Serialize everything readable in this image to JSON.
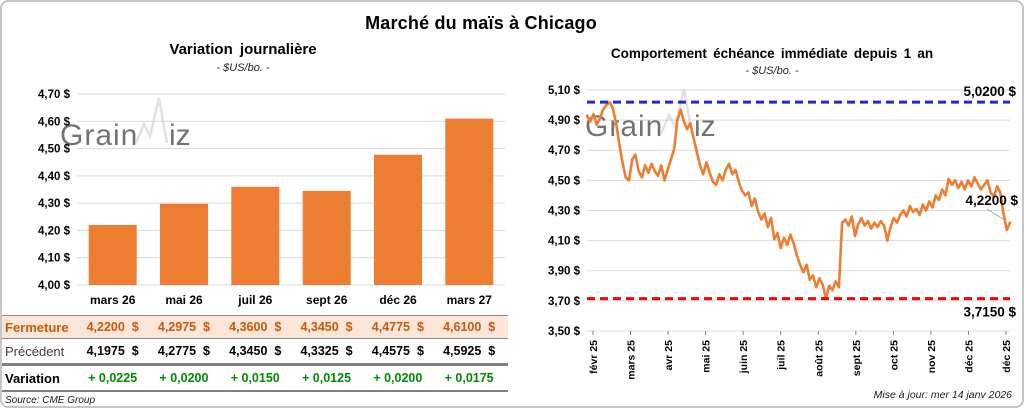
{
  "header": {
    "title": "Marché du maïs à Chicago"
  },
  "watermark": {
    "text": "GrainWiz",
    "prefix": "Grain",
    "suffix": "iz"
  },
  "colors": {
    "accent_orange": "#ED7D31",
    "fermeture_bg": "#FBE5D6",
    "fermeture_text": "#C55A11",
    "variation_green": "#008C00",
    "ref_high_blue": "#2626CC",
    "ref_low_red": "#FF0000",
    "gridline_gray": "#D9D9D9"
  },
  "chart_data": [
    {
      "type": "bar",
      "title": "Variation journalière",
      "subtitle": "- $US/bo. -",
      "categories": [
        "mars 26",
        "mai 26",
        "juil 26",
        "sept 26",
        "déc 26",
        "mars 27"
      ],
      "values": [
        4.22,
        4.2975,
        4.36,
        4.345,
        4.4775,
        4.61
      ],
      "ylim": [
        4.0,
        4.7
      ],
      "ytick_step": 0.1,
      "ytick_format": "0,00 $",
      "bar_color": "#ED7D31",
      "grid": "horizontal",
      "legend": "none"
    },
    {
      "type": "line",
      "title": "Comportement échéance immédiate depuis 1 an",
      "subtitle": "- $US/bo. -",
      "x_labels": [
        "févr 25",
        "mars 25",
        "avr 25",
        "mai 25",
        "juin 25",
        "juil 25",
        "août 25",
        "sept 25",
        "oct 25",
        "nov 25",
        "déc 25",
        "déc 25"
      ],
      "values": [
        4.93,
        4.89,
        4.94,
        4.87,
        4.91,
        4.97,
        5.0,
        5.02,
        4.98,
        4.88,
        4.74,
        4.62,
        4.52,
        4.5,
        4.64,
        4.67,
        4.56,
        4.52,
        4.6,
        4.55,
        4.61,
        4.56,
        4.53,
        4.6,
        4.5,
        4.57,
        4.64,
        4.71,
        4.9,
        4.97,
        4.89,
        4.84,
        4.88,
        4.78,
        4.69,
        4.6,
        4.54,
        4.62,
        4.55,
        4.49,
        4.47,
        4.54,
        4.5,
        4.57,
        4.61,
        4.54,
        4.57,
        4.49,
        4.43,
        4.4,
        4.42,
        4.33,
        4.38,
        4.29,
        4.24,
        4.28,
        4.19,
        4.25,
        4.11,
        4.15,
        4.05,
        4.12,
        4.07,
        4.14,
        4.08,
        4.0,
        3.94,
        3.89,
        3.94,
        3.84,
        3.87,
        3.79,
        3.85,
        3.81,
        3.715,
        3.8,
        3.77,
        3.83,
        3.79,
        4.22,
        4.24,
        4.2,
        4.26,
        4.13,
        4.21,
        4.25,
        4.2,
        4.23,
        4.18,
        4.22,
        4.19,
        4.23,
        4.2,
        4.1,
        4.19,
        4.25,
        4.22,
        4.27,
        4.3,
        4.26,
        4.33,
        4.29,
        4.31,
        4.27,
        4.34,
        4.3,
        4.36,
        4.32,
        4.4,
        4.37,
        4.44,
        4.4,
        4.51,
        4.47,
        4.5,
        4.45,
        4.49,
        4.44,
        4.5,
        4.46,
        4.52,
        4.48,
        4.44,
        4.47,
        4.5,
        4.42,
        4.39,
        4.46,
        4.42,
        4.28,
        4.17,
        4.22
      ],
      "ylim": [
        3.5,
        5.1
      ],
      "ytick_step": 0.2,
      "ytick_format": "0,00 $",
      "line_color": "#ED7D31",
      "ref_lines": [
        {
          "value": 5.02,
          "label": "5,0200 $",
          "color": "#2626CC",
          "position": "above"
        },
        {
          "value": 3.715,
          "label": "3,7150 $",
          "color": "#FF0000",
          "position": "below"
        }
      ],
      "last_value_label": "4,2200 $",
      "grid": "horizontal",
      "legend": "none"
    }
  ],
  "table": {
    "rows": [
      {
        "label": "Fermeture",
        "values": [
          "4,2200  $",
          "4,2975  $",
          "4,3600  $",
          "4,3450  $",
          "4,4775  $",
          "4,6100  $"
        ]
      },
      {
        "label": "Précédent",
        "values": [
          "4,1975  $",
          "4,2775  $",
          "4,3450  $",
          "4,3325  $",
          "4,4575  $",
          "4,5925  $"
        ]
      },
      {
        "label": "Variation",
        "values": [
          "+ 0,0225",
          "+ 0,0200",
          "+ 0,0150",
          "+ 0,0125",
          "+ 0,0200",
          "+ 0,0175"
        ]
      }
    ],
    "source": "Source: CME Group"
  },
  "footer": {
    "updated": "Mise à jour: mer 14 janv 2026"
  }
}
